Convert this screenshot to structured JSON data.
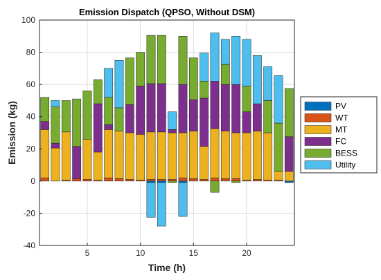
{
  "chart_data": {
    "type": "bar",
    "stacked": true,
    "title": "Emission Dispatch (QPSO, Without DSM)",
    "xlabel": "Time (h)",
    "ylabel": "Emission (kg)",
    "xlim": [
      0.5,
      24.5
    ],
    "ylim": [
      -40,
      100
    ],
    "xticks": [
      5,
      10,
      15,
      20
    ],
    "yticks": [
      -40,
      -20,
      0,
      20,
      40,
      60,
      80,
      100
    ],
    "grid": true,
    "legend_position": "right",
    "x": [
      1,
      2,
      3,
      4,
      5,
      6,
      7,
      8,
      9,
      10,
      11,
      12,
      13,
      14,
      15,
      16,
      17,
      18,
      19,
      20,
      21,
      22,
      23,
      24
    ],
    "series": [
      {
        "name": "PV",
        "color": "#0072BD",
        "values": [
          0,
          0,
          0,
          0,
          0,
          0,
          0,
          0,
          0,
          0,
          -1,
          -1,
          0,
          -1,
          0,
          0,
          0,
          0,
          0,
          0,
          0,
          0,
          0,
          -1
        ]
      },
      {
        "name": "WT",
        "color": "#D95319",
        "values": [
          2,
          0,
          0.5,
          1.5,
          1,
          0.5,
          2,
          1.5,
          1,
          0.5,
          1,
          1,
          1,
          2,
          1.5,
          1,
          2,
          1.5,
          1.5,
          0.5,
          1,
          0.5,
          0.5,
          0
        ]
      },
      {
        "name": "MT",
        "color": "#EDB120",
        "values": [
          30,
          20.5,
          30,
          0,
          25,
          17.5,
          30,
          29.5,
          29,
          28.5,
          29.5,
          29.5,
          29,
          28,
          29.5,
          20.5,
          30.5,
          29.5,
          28.5,
          29.5,
          30,
          29.5,
          5.5,
          6
        ]
      },
      {
        "name": "FC",
        "color": "#7E2F8E",
        "values": [
          5,
          3,
          0,
          20,
          0,
          30,
          3,
          0,
          17.5,
          30,
          30,
          30,
          2,
          30,
          19.5,
          30,
          29.5,
          29,
          30,
          13,
          17,
          0,
          0,
          21.5
        ]
      },
      {
        "name": "BESS",
        "color": "#77AC30",
        "values": [
          15,
          22.5,
          19.5,
          29.5,
          30,
          15,
          17,
          14.5,
          29,
          21,
          30,
          30,
          -1,
          30,
          26,
          10.5,
          -7,
          12.5,
          -1,
          16,
          0,
          20,
          30,
          30
        ]
      },
      {
        "name": "Utility",
        "color": "#4DBEEE",
        "values": [
          0,
          4,
          0,
          0,
          0,
          0,
          18,
          29.5,
          0,
          0,
          -21.5,
          -27,
          11,
          -21,
          0,
          17.5,
          30,
          15.5,
          30,
          29,
          30,
          21,
          29.5,
          0
        ]
      }
    ]
  }
}
